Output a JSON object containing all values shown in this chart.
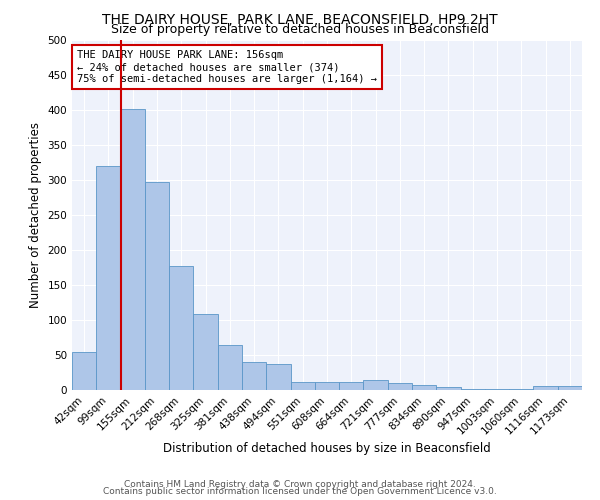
{
  "title": "THE DAIRY HOUSE, PARK LANE, BEACONSFIELD, HP9 2HT",
  "subtitle": "Size of property relative to detached houses in Beaconsfield",
  "xlabel": "Distribution of detached houses by size in Beaconsfield",
  "ylabel": "Number of detached properties",
  "categories": [
    "42sqm",
    "99sqm",
    "155sqm",
    "212sqm",
    "268sqm",
    "325sqm",
    "381sqm",
    "438sqm",
    "494sqm",
    "551sqm",
    "608sqm",
    "664sqm",
    "721sqm",
    "777sqm",
    "834sqm",
    "890sqm",
    "947sqm",
    "1003sqm",
    "1060sqm",
    "1116sqm",
    "1173sqm"
  ],
  "values": [
    54,
    320,
    401,
    297,
    177,
    108,
    65,
    40,
    37,
    12,
    11,
    11,
    15,
    10,
    7,
    4,
    2,
    2,
    1,
    6,
    6
  ],
  "bar_color": "#aec6e8",
  "bar_edge_color": "#5a96c8",
  "marker_line_color": "#cc0000",
  "annotation_box_edge_color": "#cc0000",
  "marker_label": "THE DAIRY HOUSE PARK LANE: 156sqm",
  "marker_smaller_pct": "24%",
  "marker_smaller_n": "374",
  "marker_larger_pct": "75%",
  "marker_larger_n": "1,164",
  "footer1": "Contains HM Land Registry data © Crown copyright and database right 2024.",
  "footer2": "Contains public sector information licensed under the Open Government Licence v3.0.",
  "ylim": [
    0,
    500
  ],
  "yticks": [
    0,
    50,
    100,
    150,
    200,
    250,
    300,
    350,
    400,
    450,
    500
  ],
  "bg_color": "#eef2fb",
  "fig_bg_color": "#ffffff",
  "title_fontsize": 10,
  "subtitle_fontsize": 9,
  "axis_label_fontsize": 8.5,
  "tick_fontsize": 7.5,
  "annotation_fontsize": 7.5,
  "footer_fontsize": 6.5
}
